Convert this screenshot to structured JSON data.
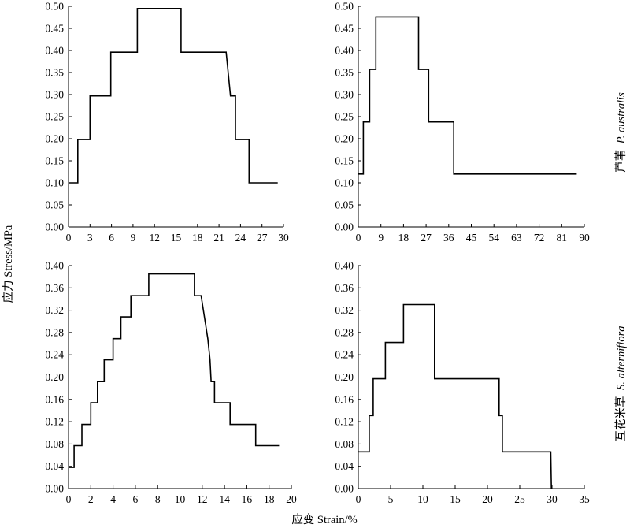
{
  "figure": {
    "ylabel": "应力 Stress/MPa",
    "xlabel": "应变 Strain/%",
    "row_labels": [
      {
        "common": "芦苇",
        "latin": "P. australis"
      },
      {
        "common": "互花米草",
        "latin": "S. alterniflora"
      }
    ]
  },
  "chart_data": [
    {
      "type": "line",
      "xlim": [
        0,
        30
      ],
      "ylim": [
        0,
        0.5
      ],
      "x_ticks": [
        "0",
        "3",
        "6",
        "9",
        "12",
        "15",
        "18",
        "21",
        "24",
        "27",
        "30"
      ],
      "y_ticks": [
        "0.00",
        "0.05",
        "0.10",
        "0.15",
        "0.20",
        "0.25",
        "0.30",
        "0.35",
        "0.40",
        "0.45",
        "0.50"
      ],
      "series": [
        {
          "values": [
            [
              0.0,
              0.1
            ],
            [
              1.3,
              0.1
            ],
            [
              1.3,
              0.198
            ],
            [
              3.0,
              0.198
            ],
            [
              3.0,
              0.297
            ],
            [
              5.9,
              0.297
            ],
            [
              5.9,
              0.396
            ],
            [
              9.6,
              0.396
            ],
            [
              9.6,
              0.495
            ],
            [
              15.7,
              0.495
            ],
            [
              15.7,
              0.396
            ],
            [
              22.0,
              0.396
            ],
            [
              22.6,
              0.297
            ],
            [
              23.3,
              0.297
            ],
            [
              23.3,
              0.198
            ],
            [
              25.2,
              0.198
            ],
            [
              25.2,
              0.1
            ],
            [
              29.2,
              0.1
            ]
          ]
        }
      ]
    },
    {
      "type": "line",
      "xlim": [
        0,
        90
      ],
      "ylim": [
        0,
        0.5
      ],
      "x_ticks": [
        "0",
        "9",
        "18",
        "27",
        "36",
        "45",
        "54",
        "63",
        "72",
        "81",
        "90"
      ],
      "y_ticks": [
        "0.00",
        "0.05",
        "0.10",
        "0.15",
        "0.20",
        "0.25",
        "0.30",
        "0.35",
        "0.40",
        "0.45",
        "0.50"
      ],
      "series": [
        {
          "values": [
            [
              0.0,
              0.12
            ],
            [
              2.0,
              0.12
            ],
            [
              2.0,
              0.238
            ],
            [
              4.5,
              0.238
            ],
            [
              4.5,
              0.357
            ],
            [
              7.0,
              0.357
            ],
            [
              7.0,
              0.476
            ],
            [
              24.0,
              0.476
            ],
            [
              24.0,
              0.357
            ],
            [
              28.0,
              0.357
            ],
            [
              28.0,
              0.238
            ],
            [
              38.0,
              0.238
            ],
            [
              38.0,
              0.12
            ],
            [
              87.0,
              0.12
            ]
          ]
        }
      ]
    },
    {
      "type": "line",
      "xlim": [
        0,
        20
      ],
      "ylim": [
        0,
        0.4
      ],
      "x_ticks": [
        "0",
        "2",
        "4",
        "6",
        "8",
        "10",
        "12",
        "14",
        "16",
        "18",
        "20"
      ],
      "y_ticks": [
        "0.00",
        "0.04",
        "0.08",
        "0.12",
        "0.16",
        "0.20",
        "0.24",
        "0.28",
        "0.32",
        "0.36",
        "0.40"
      ],
      "series": [
        {
          "values": [
            [
              0.0,
              0.038
            ],
            [
              0.5,
              0.038
            ],
            [
              0.5,
              0.077
            ],
            [
              1.2,
              0.077
            ],
            [
              1.2,
              0.115
            ],
            [
              2.0,
              0.115
            ],
            [
              2.0,
              0.154
            ],
            [
              2.6,
              0.154
            ],
            [
              2.6,
              0.192
            ],
            [
              3.2,
              0.192
            ],
            [
              3.2,
              0.231
            ],
            [
              4.0,
              0.231
            ],
            [
              4.0,
              0.269
            ],
            [
              4.7,
              0.269
            ],
            [
              4.7,
              0.308
            ],
            [
              5.6,
              0.308
            ],
            [
              5.6,
              0.346
            ],
            [
              7.2,
              0.346
            ],
            [
              7.2,
              0.385
            ],
            [
              11.3,
              0.385
            ],
            [
              11.3,
              0.346
            ],
            [
              11.9,
              0.346
            ],
            [
              12.2,
              0.308
            ],
            [
              12.5,
              0.269
            ],
            [
              12.7,
              0.231
            ],
            [
              12.8,
              0.192
            ],
            [
              13.1,
              0.192
            ],
            [
              13.1,
              0.154
            ],
            [
              14.5,
              0.154
            ],
            [
              14.5,
              0.115
            ],
            [
              16.8,
              0.115
            ],
            [
              16.8,
              0.077
            ],
            [
              18.9,
              0.077
            ]
          ]
        }
      ]
    },
    {
      "type": "line",
      "xlim": [
        0,
        35
      ],
      "ylim": [
        0,
        0.4
      ],
      "x_ticks": [
        "0",
        "5",
        "10",
        "15",
        "20",
        "25",
        "30",
        "35"
      ],
      "y_ticks": [
        "0.00",
        "0.04",
        "0.08",
        "0.12",
        "0.16",
        "0.20",
        "0.24",
        "0.28",
        "0.32",
        "0.36",
        "0.40"
      ],
      "series": [
        {
          "values": [
            [
              0.0,
              0.066
            ],
            [
              1.7,
              0.066
            ],
            [
              1.7,
              0.131
            ],
            [
              2.3,
              0.131
            ],
            [
              2.3,
              0.197
            ],
            [
              4.2,
              0.197
            ],
            [
              4.2,
              0.262
            ],
            [
              7.0,
              0.262
            ],
            [
              7.0,
              0.33
            ],
            [
              11.8,
              0.33
            ],
            [
              11.8,
              0.197
            ],
            [
              21.8,
              0.197
            ],
            [
              21.8,
              0.131
            ],
            [
              22.3,
              0.131
            ],
            [
              22.3,
              0.066
            ],
            [
              29.8,
              0.066
            ],
            [
              29.9,
              0.0
            ]
          ]
        }
      ]
    }
  ]
}
